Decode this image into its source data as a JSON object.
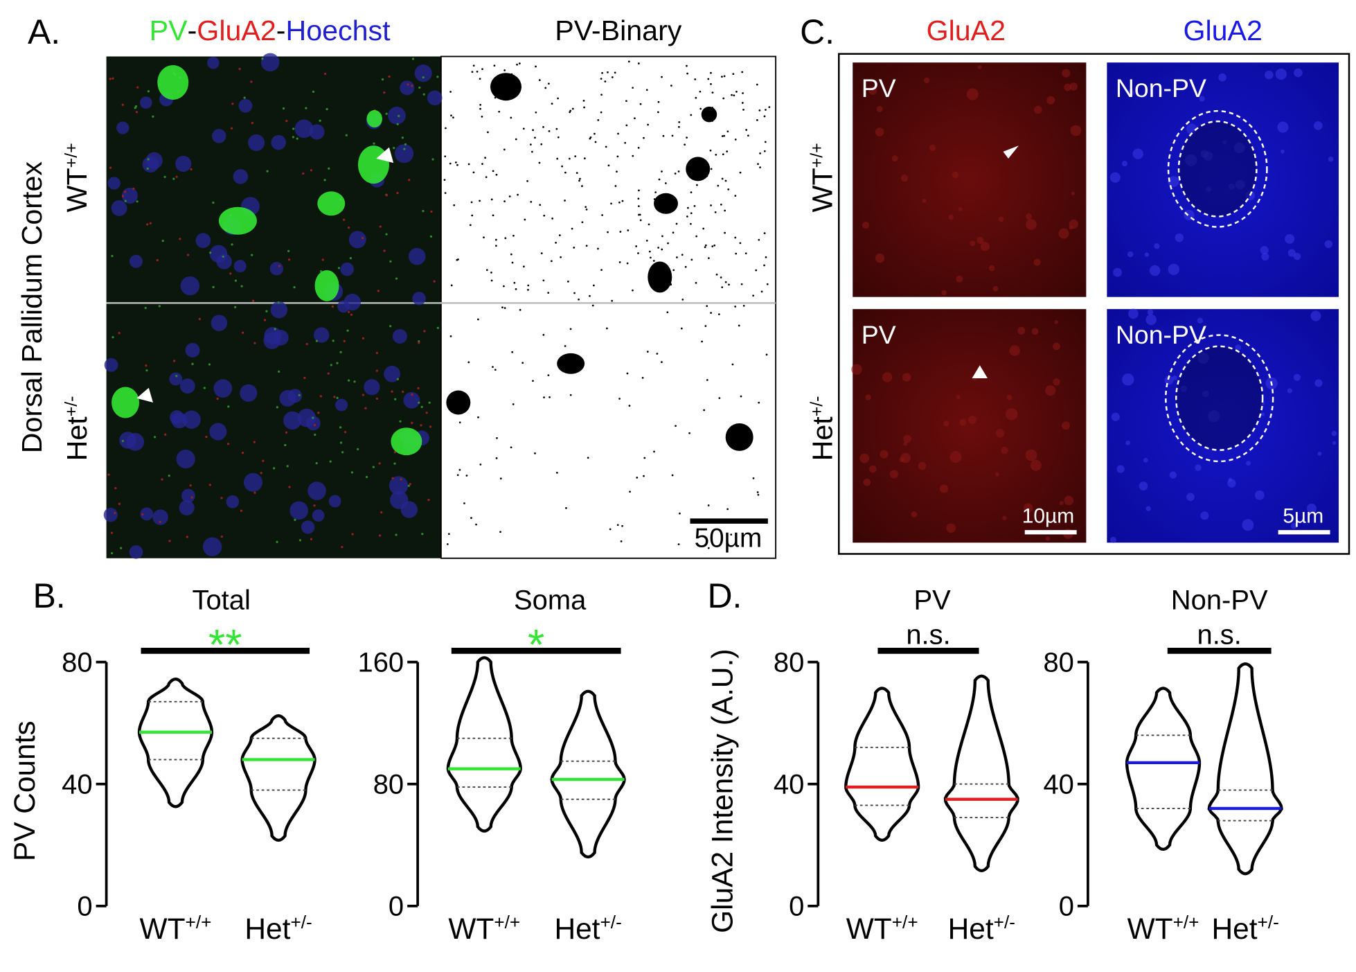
{
  "panel_labels": [
    "A.",
    "B.",
    "C.",
    "D."
  ],
  "panel_a": {
    "title_parts": [
      "PV",
      "-",
      "GluA2",
      "-",
      "Hoechst"
    ],
    "binary_title": "PV-Binary",
    "side_label": "Dorsal Pallidum Cortex",
    "rows": [
      {
        "base": "WT",
        "sup": "+/+"
      },
      {
        "base": "Het",
        "sup": "+/-"
      }
    ],
    "scale_bar": "50µm"
  },
  "panel_c": {
    "columns": [
      "GluA2",
      "GluA2"
    ],
    "rows": [
      {
        "base": "WT",
        "sup": "+/+"
      },
      {
        "base": "Het",
        "sup": "+/-"
      }
    ],
    "image_labels": [
      "PV",
      "Non-PV",
      "PV",
      "Non-PV"
    ],
    "scale_bars": [
      "10µm",
      "5µm"
    ]
  },
  "chart_data": [
    {
      "type": "violin",
      "title": "Total",
      "significance": "**",
      "significance_color": "#33e633",
      "ylabel": "PV Counts",
      "ylim": [
        0,
        80
      ],
      "yticks": [
        0,
        40,
        80
      ],
      "color": "#33e633",
      "categories": [
        {
          "base": "WT",
          "sup": "+/+"
        },
        {
          "base": "Het",
          "sup": "+/-"
        }
      ],
      "groups": [
        {
          "min": 34,
          "q1": 48,
          "median": 57,
          "q3": 67,
          "max": 73
        },
        {
          "min": 23,
          "q1": 38,
          "median": 48,
          "q3": 55,
          "max": 61
        }
      ]
    },
    {
      "type": "violin",
      "title": "Soma",
      "significance": "*",
      "significance_color": "#33e633",
      "ylim": [
        0,
        160
      ],
      "yticks": [
        0,
        80,
        160
      ],
      "color": "#33e633",
      "categories": [
        {
          "base": "WT",
          "sup": "+/+"
        },
        {
          "base": "Het",
          "sup": "+/-"
        }
      ],
      "groups": [
        {
          "min": 52,
          "q1": 78,
          "median": 90,
          "q3": 110,
          "max": 160
        },
        {
          "min": 35,
          "q1": 70,
          "median": 83,
          "q3": 95,
          "max": 138
        }
      ]
    },
    {
      "type": "violin",
      "title": "PV",
      "significance": "n.s.",
      "significance_color": "#000000",
      "ylabel": "GluA2 Intensity (A.U.)",
      "ylim": [
        0,
        80
      ],
      "yticks": [
        0,
        40,
        80
      ],
      "color": "#e02020",
      "categories": [
        {
          "base": "WT",
          "sup": "+/+"
        },
        {
          "base": "Het",
          "sup": "+/-"
        }
      ],
      "groups": [
        {
          "min": 23,
          "q1": 33,
          "median": 39,
          "q3": 52,
          "max": 70
        },
        {
          "min": 13,
          "q1": 29,
          "median": 35,
          "q3": 40,
          "max": 74
        }
      ]
    },
    {
      "type": "violin",
      "title": "Non-PV",
      "significance": "n.s.",
      "significance_color": "#000000",
      "ylim": [
        0,
        80
      ],
      "yticks": [
        0,
        40,
        80
      ],
      "color": "#1a1ae6",
      "categories": [
        {
          "base": "WT",
          "sup": "+/+"
        },
        {
          "base": "Het",
          "sup": "+/-"
        }
      ],
      "groups": [
        {
          "min": 20,
          "q1": 32,
          "median": 47,
          "q3": 56,
          "max": 70
        },
        {
          "min": 12,
          "q1": 28,
          "median": 32,
          "q3": 38,
          "max": 78
        }
      ]
    }
  ]
}
